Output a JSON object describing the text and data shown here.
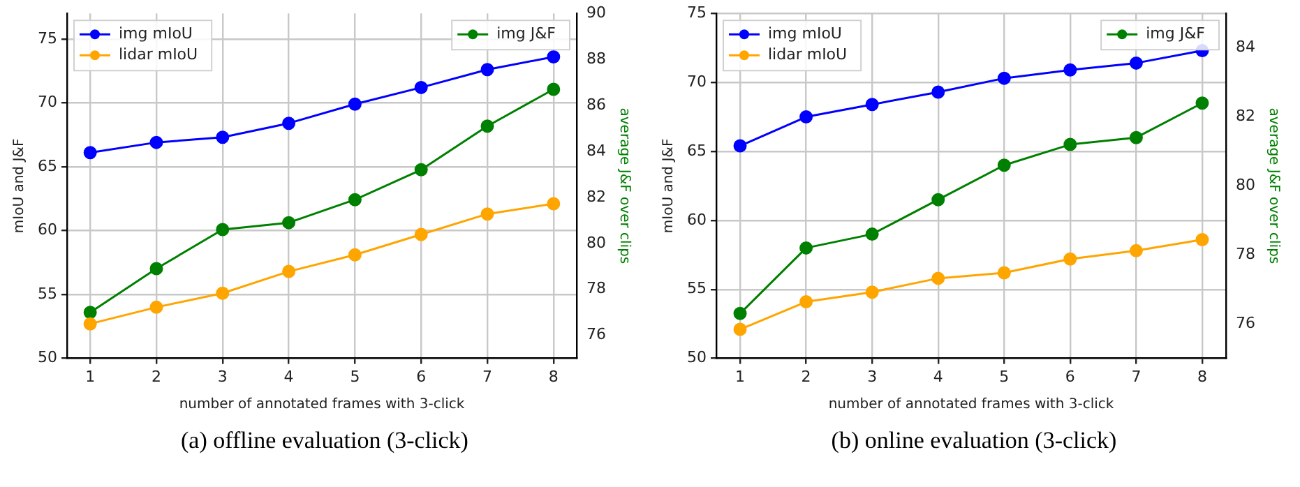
{
  "chart_data": [
    {
      "type": "line",
      "title": "(a) offline evaluation (3-click)",
      "xlabel": "number of annotated frames with 3-click",
      "ylabel": "mIoU and J&F",
      "y2label": "average J&F over clips",
      "x": [
        1,
        2,
        3,
        4,
        5,
        6,
        7,
        8
      ],
      "xlim": [
        0.65,
        8.35
      ],
      "xticks": [
        1,
        2,
        3,
        4,
        5,
        6,
        7,
        8
      ],
      "ylim": [
        50,
        77
      ],
      "yticks": [
        50,
        55,
        60,
        65,
        70,
        75
      ],
      "y2lim": [
        75,
        90
      ],
      "y2ticks": [
        76,
        78,
        80,
        82,
        84,
        86,
        88,
        90
      ],
      "grid": true,
      "legend": "top left",
      "marker": "circle",
      "line_style": "solid",
      "series": [
        {
          "name": "img mIoU",
          "color": "#0000ff",
          "values": [
            66.1,
            66.9,
            67.3,
            68.4,
            69.9,
            71.2,
            72.6,
            73.6
          ]
        },
        {
          "name": "lidar mIoU",
          "color": "#ffa500",
          "values": [
            52.7,
            54.0,
            55.1,
            56.8,
            58.1,
            59.7,
            61.3,
            62.1
          ]
        },
        {
          "name": "img J&F",
          "color": "#008000",
          "axis": "y2",
          "values": [
            77.0,
            78.9,
            80.6,
            80.9,
            81.9,
            83.2,
            85.1,
            86.7
          ]
        }
      ]
    },
    {
      "type": "line",
      "title": "(b) online evaluation (3-click)",
      "xlabel": "number of annotated frames with 3-click",
      "ylabel": "mIoU and J&F",
      "y2label": "average J&F over clips",
      "x": [
        1,
        2,
        3,
        4,
        5,
        6,
        7,
        8
      ],
      "xlim": [
        0.64,
        8.36
      ],
      "xticks": [
        1,
        2,
        3,
        4,
        5,
        6,
        7,
        8
      ],
      "ylim": [
        50,
        75
      ],
      "yticks": [
        50,
        55,
        60,
        65,
        70,
        75
      ],
      "y2lim": [
        75,
        85
      ],
      "y2ticks": [
        76,
        78,
        80,
        82,
        84
      ],
      "grid": true,
      "legend": "top left",
      "marker": "circle",
      "line_style": "solid",
      "series": [
        {
          "name": "img mIoU",
          "color": "#0000ff",
          "values": [
            65.4,
            67.5,
            68.4,
            69.3,
            70.3,
            70.9,
            71.4,
            72.3
          ]
        },
        {
          "name": "lidar mIoU",
          "color": "#ffa500",
          "values": [
            52.1,
            54.1,
            54.8,
            55.8,
            56.2,
            57.2,
            57.8,
            58.6
          ]
        },
        {
          "name": "img J&F",
          "color": "#008000",
          "axis": "y2",
          "values": [
            76.3,
            78.2,
            78.6,
            79.6,
            80.6,
            81.2,
            81.4,
            82.4
          ]
        }
      ]
    }
  ]
}
